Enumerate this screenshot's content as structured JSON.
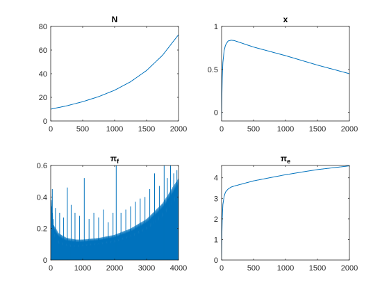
{
  "chart_data": [
    {
      "type": "line",
      "title": "N",
      "xlim": [
        0,
        2000
      ],
      "ylim": [
        0,
        80
      ],
      "xticks": [
        0,
        500,
        1000,
        1500,
        2000
      ],
      "yticks": [
        0,
        20,
        40,
        60,
        80
      ],
      "grid": false,
      "color": "#0072BD",
      "series": [
        {
          "x": [
            0,
            250,
            500,
            750,
            1000,
            1250,
            1500,
            1750,
            2000
          ],
          "y": [
            10,
            12.8,
            16.3,
            20.6,
            26.0,
            33.2,
            42.7,
            55.6,
            73
          ]
        }
      ]
    },
    {
      "type": "line",
      "title": "x",
      "xlim": [
        0,
        2000
      ],
      "ylim": [
        -0.1,
        1
      ],
      "xticks": [
        0,
        500,
        1000,
        1500,
        2000
      ],
      "yticks": [
        0,
        0.5,
        1
      ],
      "grid": false,
      "color": "#0072BD",
      "series": [
        {
          "x": [
            0,
            5,
            10,
            20,
            40,
            60,
            100,
            150,
            200,
            500,
            1000,
            1500,
            2000
          ],
          "y": [
            -0.08,
            0.2,
            0.4,
            0.58,
            0.72,
            0.78,
            0.83,
            0.84,
            0.835,
            0.76,
            0.66,
            0.55,
            0.45
          ]
        }
      ]
    },
    {
      "type": "area",
      "title": "π",
      "title_sub": "f",
      "xlim": [
        0,
        4000
      ],
      "ylim": [
        0,
        0.6
      ],
      "xticks": [
        0,
        1000,
        2000,
        3000,
        4000
      ],
      "yticks": [
        0,
        0.2,
        0.4,
        0.6
      ],
      "grid": false,
      "color": "#0072BD",
      "baseline": {
        "x": [
          0,
          100,
          250,
          500,
          800,
          1000,
          1500,
          2000,
          2500,
          3000,
          3500,
          4000
        ],
        "y": [
          0.38,
          0.15,
          0.1,
          0.085,
          0.08,
          0.085,
          0.095,
          0.11,
          0.14,
          0.19,
          0.27,
          0.4
        ]
      },
      "envelope": {
        "x": [
          0,
          100,
          250,
          500,
          800,
          1000,
          1500,
          2000,
          2500,
          3000,
          3500,
          4000
        ],
        "y": [
          0.42,
          0.22,
          0.17,
          0.14,
          0.13,
          0.13,
          0.14,
          0.16,
          0.2,
          0.26,
          0.36,
          0.52
        ]
      },
      "spikes": {
        "x": [
          50,
          150,
          280,
          400,
          520,
          640,
          760,
          900,
          1050,
          1200,
          1350,
          1500,
          1650,
          1800,
          1950,
          2050,
          2200,
          2350,
          2500,
          2650,
          2800,
          2950,
          3100,
          3250,
          3400,
          3550,
          3650,
          3750,
          3850,
          3950
        ],
        "y": [
          0.45,
          0.33,
          0.3,
          0.27,
          0.46,
          0.35,
          0.3,
          0.28,
          0.52,
          0.26,
          0.3,
          0.27,
          0.32,
          0.24,
          0.3,
          0.6,
          0.3,
          0.32,
          0.34,
          0.37,
          0.39,
          0.4,
          0.45,
          0.55,
          0.47,
          0.6,
          0.52,
          0.6,
          0.55,
          0.57
        ]
      }
    },
    {
      "type": "line",
      "title": "π",
      "title_sub": "e",
      "xlim": [
        0,
        2000
      ],
      "ylim": [
        0,
        4.6
      ],
      "xticks": [
        0,
        500,
        1000,
        1500,
        2000
      ],
      "yticks": [
        0,
        1,
        2,
        3,
        4
      ],
      "grid": false,
      "color": "#0072BD",
      "series": [
        {
          "x": [
            0,
            5,
            10,
            20,
            40,
            60,
            100,
            150,
            200,
            500,
            1000,
            1500,
            2000
          ],
          "y": [
            0,
            1.3,
            2.0,
            2.7,
            3.1,
            3.3,
            3.45,
            3.55,
            3.6,
            3.85,
            4.15,
            4.4,
            4.58
          ]
        }
      ]
    }
  ]
}
